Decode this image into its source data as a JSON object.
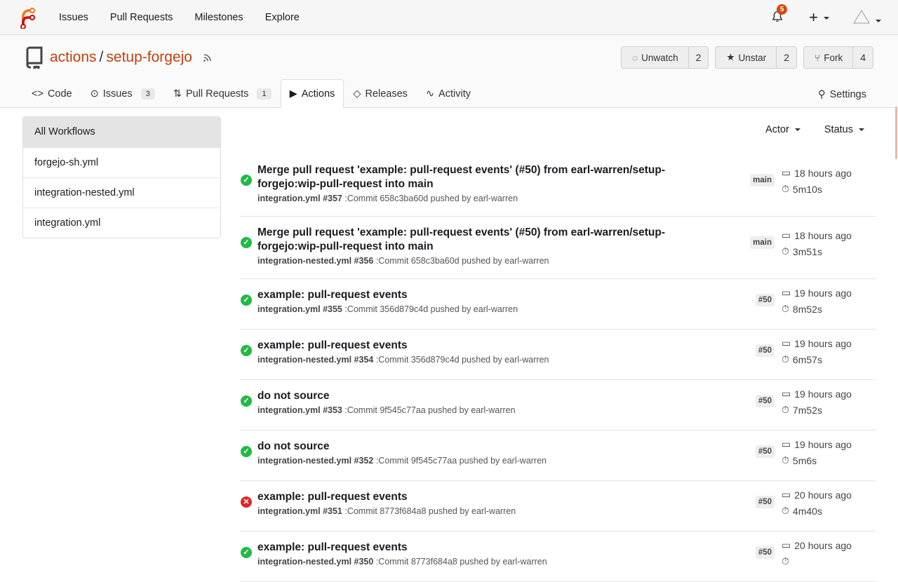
{
  "nav": {
    "items": [
      "Issues",
      "Pull Requests",
      "Milestones",
      "Explore"
    ],
    "notifications": "5"
  },
  "repo": {
    "owner": "actions",
    "name": "setup-forgejo",
    "buttons": [
      {
        "label": "Unwatch",
        "count": "2"
      },
      {
        "label": "Unstar",
        "count": "2"
      },
      {
        "label": "Fork",
        "count": "4"
      }
    ]
  },
  "tabs": [
    {
      "label": "Code"
    },
    {
      "label": "Issues",
      "count": "3"
    },
    {
      "label": "Pull Requests",
      "count": "1"
    },
    {
      "label": "Actions"
    },
    {
      "label": "Releases"
    },
    {
      "label": "Activity"
    }
  ],
  "settings": "Settings",
  "sidebar": [
    "All Workflows",
    "forgejo-sh.yml",
    "integration-nested.yml",
    "integration.yml"
  ],
  "filters": {
    "actor": "Actor",
    "status": "Status"
  },
  "colors": {
    "success": "#21ba45",
    "failure": "#db2828",
    "accent": "#c2410c"
  },
  "runs": [
    {
      "status": "success",
      "title": "Merge pull request 'example: pull-request events' (#50) from earl-warren/setup-forgejo:wip-pull-request into main",
      "workflow": "integration.yml #357",
      "commit": ":Commit 658c3ba60d pushed by earl-warren",
      "ref": "main",
      "time": "18 hours ago",
      "duration": "5m10s"
    },
    {
      "status": "success",
      "title": "Merge pull request 'example: pull-request events' (#50) from earl-warren/setup-forgejo:wip-pull-request into main",
      "workflow": "integration-nested.yml #356",
      "commit": ":Commit 658c3ba60d pushed by earl-warren",
      "ref": "main",
      "time": "18 hours ago",
      "duration": "3m51s"
    },
    {
      "status": "success",
      "title": "example: pull-request events",
      "workflow": "integration.yml #355",
      "commit": ":Commit 356d879c4d pushed by earl-warren",
      "ref": "#50",
      "time": "19 hours ago",
      "duration": "8m52s"
    },
    {
      "status": "success",
      "title": "example: pull-request events",
      "workflow": "integration-nested.yml #354",
      "commit": ":Commit 356d879c4d pushed by earl-warren",
      "ref": "#50",
      "time": "19 hours ago",
      "duration": "6m57s"
    },
    {
      "status": "success",
      "title": "do not source",
      "workflow": "integration.yml #353",
      "commit": ":Commit 9f545c77aa pushed by earl-warren",
      "ref": "#50",
      "time": "19 hours ago",
      "duration": "7m52s"
    },
    {
      "status": "success",
      "title": "do not source",
      "workflow": "integration-nested.yml #352",
      "commit": ":Commit 9f545c77aa pushed by earl-warren",
      "ref": "#50",
      "time": "19 hours ago",
      "duration": "5m6s"
    },
    {
      "status": "failure",
      "title": "example: pull-request events",
      "workflow": "integration.yml #351",
      "commit": ":Commit 8773f684a8 pushed by earl-warren",
      "ref": "#50",
      "time": "20 hours ago",
      "duration": "4m40s"
    },
    {
      "status": "success",
      "title": "example: pull-request events",
      "workflow": "integration-nested.yml #350",
      "commit": ":Commit 8773f684a8 pushed by earl-warren",
      "ref": "#50",
      "time": "20 hours ago",
      "duration": ""
    }
  ]
}
